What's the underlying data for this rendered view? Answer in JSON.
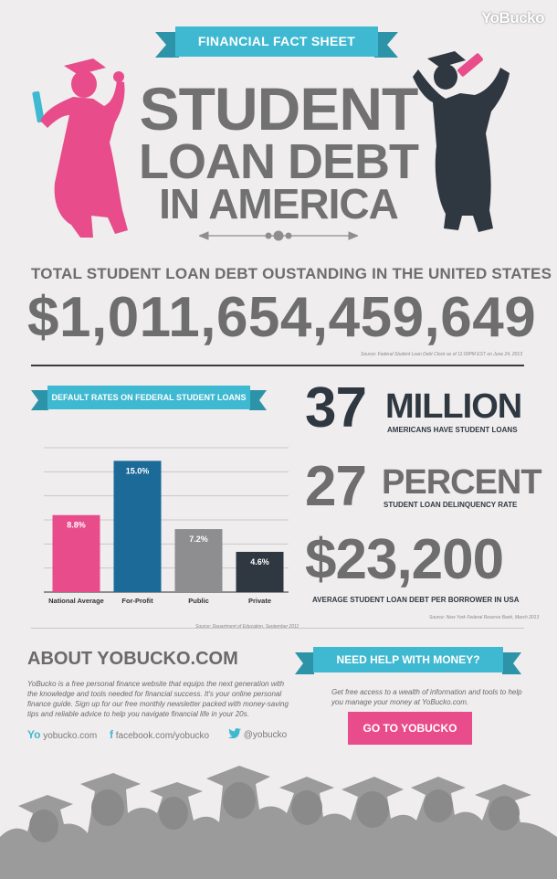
{
  "brand": "YoBucko",
  "header": {
    "ribbon": "FINANCIAL FACT SHEET",
    "title_lines": [
      "STUDENT",
      "LOAN DEBT",
      "IN AMERICA"
    ]
  },
  "total": {
    "label": "TOTAL STUDENT LOAN DEBT OUSTANDING IN THE UNITED STATES",
    "value": "$1,011,654,459,649",
    "source": "Source: Federal Student Loan Debt Clock as of 11:00PM EST on June 24, 2013"
  },
  "default_rates": {
    "ribbon": "DEFAULT RATES ON FEDERAL STUDENT LOANS",
    "source": "Source: Department of Education, September 2011"
  },
  "chart_data": {
    "type": "bar",
    "title": "DEFAULT RATES ON FEDERAL STUDENT LOANS",
    "categories": [
      "National Average",
      "For-Profit",
      "Public",
      "Private"
    ],
    "values": [
      8.8,
      15.0,
      7.2,
      4.6
    ],
    "labels": [
      "8.8%",
      "15.0%",
      "7.2%",
      "4.6%"
    ],
    "colors": [
      "#e84c8b",
      "#1b6a98",
      "#8e8e90",
      "#2f3841"
    ],
    "ylim": [
      0,
      16.5
    ],
    "grid": true
  },
  "stats": [
    {
      "number": "37",
      "unit": "MILLION",
      "caption": "AMERICANS HAVE STUDENT LOANS"
    },
    {
      "number": "27",
      "unit": "PERCENT",
      "caption": "STUDENT LOAN DELINQUENCY RATE"
    },
    {
      "number": "$23,200",
      "unit": "",
      "caption": "AVERAGE STUDENT LOAN DEBT PER BORROWER IN USA"
    }
  ],
  "stats_source": "Source: New York Federal Reserve Bank, March 2013",
  "about": {
    "title": "ABOUT YOBUCKO.COM",
    "body": "YoBucko is a free personal finance website that equips the next generation with the knowledge and tools needed for financial success. It's your online personal finance guide. Sign up for our free monthly newsletter packed with money-saving tips and reliable advice to help you navigate financial life in your 20s."
  },
  "social": {
    "yo_glyph": "Yo",
    "web": "yobucko.com",
    "facebook": "facebook.com/yobucko",
    "twitter": "@yobucko"
  },
  "help": {
    "ribbon": "NEED HELP WITH MONEY?",
    "body": "Get free access to a wealth of information and tools to help you manage your money at YoBucko.com.",
    "cta": "GO TO YOBUCKO"
  },
  "colors": {
    "pink": "#e84c8b",
    "teal": "#3fb9d1",
    "navy": "#2f3841",
    "grey": "#6e6e6e"
  }
}
